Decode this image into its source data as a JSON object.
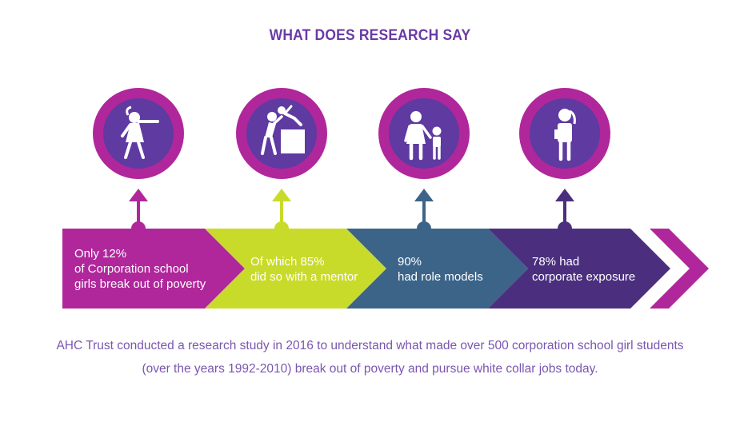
{
  "title": "WHAT DOES RESEARCH SAY",
  "colors": {
    "magenta": "#b0279b",
    "lime": "#c9db2a",
    "teal": "#3b6488",
    "purple": "#4b2f7e",
    "circle_inner": "#5e3aa1",
    "title_text": "#6a3aa6",
    "description_text": "#7a56b0"
  },
  "stages": [
    {
      "icon": "girl-waving-icon",
      "lines": [
        "Only 12%",
        "of Corporation school",
        "girls break out of poverty"
      ]
    },
    {
      "icon": "mentor-lifting-icon",
      "lines": [
        "Of which 85%",
        "did so with a mentor"
      ]
    },
    {
      "icon": "adult-child-icon",
      "lines": [
        "90%",
        "had role models"
      ]
    },
    {
      "icon": "professional-woman-icon",
      "lines": [
        "78% had",
        "corporate exposure"
      ]
    }
  ],
  "description": {
    "line1": "AHC Trust conducted a research study in 2016 to understand what made over 500 corporation school girl students",
    "line2": "(over the years 1992-2010) break out of poverty and pursue white collar jobs today."
  }
}
